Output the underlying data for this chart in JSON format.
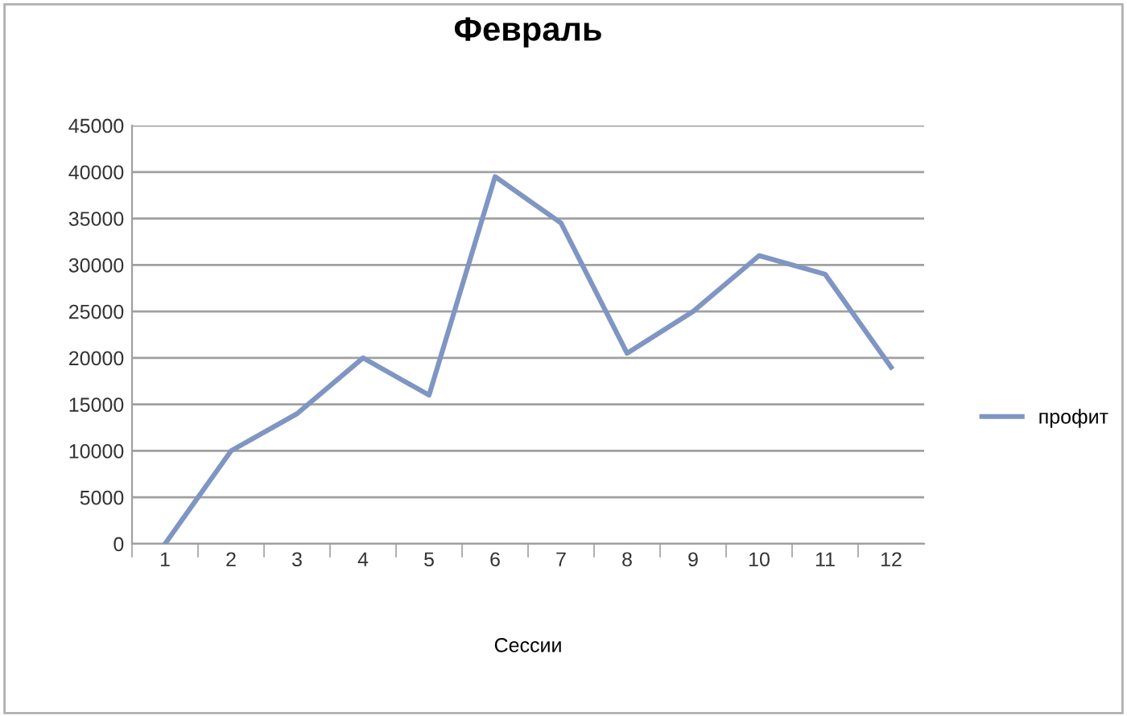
{
  "chart_data": {
    "type": "line",
    "title": "Февраль",
    "xlabel": "Сессии",
    "categories": [
      "1",
      "2",
      "3",
      "4",
      "5",
      "6",
      "7",
      "8",
      "9",
      "10",
      "11",
      "12"
    ],
    "series": [
      {
        "name": "профит",
        "color": "#7f95c3",
        "values": [
          0,
          10000,
          14000,
          20000,
          16000,
          39500,
          34500,
          20500,
          25000,
          31000,
          29000,
          19000
        ]
      }
    ],
    "ylim": [
      0,
      45000
    ],
    "yticks": [
      0,
      5000,
      10000,
      15000,
      20000,
      25000,
      30000,
      35000,
      40000,
      45000
    ],
    "grid": "y",
    "legend": "right",
    "marker": "none",
    "line_style": "solid"
  }
}
